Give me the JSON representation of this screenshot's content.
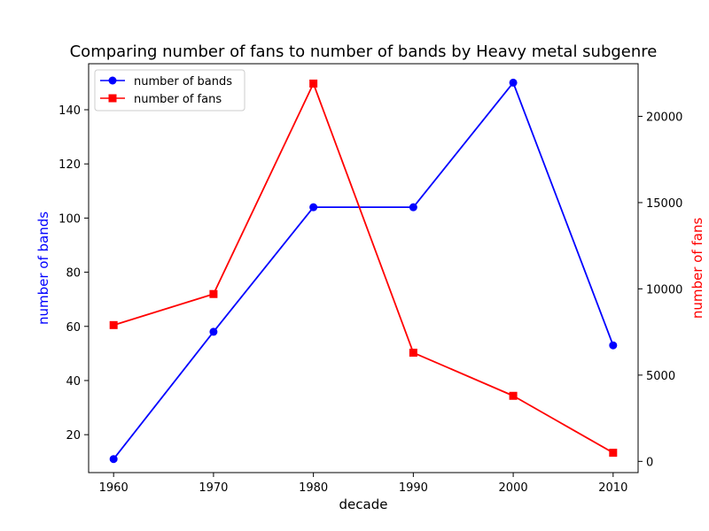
{
  "chart_data": {
    "type": "line",
    "title": "Comparing number of fans to number of bands by Heavy metal subgenre",
    "xlabel": "decade",
    "ylabel_left": "number of bands",
    "ylabel_right": "number of fans",
    "x": [
      1960,
      1970,
      1980,
      1990,
      2000,
      2010
    ],
    "x_ticks": [
      "1960",
      "1970",
      "1980",
      "1990",
      "2000",
      "2010"
    ],
    "y_left_ticks": [
      20,
      40,
      60,
      80,
      100,
      120,
      140
    ],
    "y_right_ticks": [
      0,
      5000,
      10000,
      15000,
      20000
    ],
    "y_left_range": [
      6,
      157
    ],
    "y_right_range": [
      -650,
      23050
    ],
    "legend_position": "upper-left",
    "grid": false,
    "series": [
      {
        "name": "number of bands",
        "axis": "left",
        "color": "#0000ff",
        "marker": "circle",
        "values": [
          11,
          58,
          104,
          104,
          150,
          53
        ]
      },
      {
        "name": "number of fans",
        "axis": "right",
        "color": "#ff0000",
        "marker": "square",
        "values": [
          7900,
          9700,
          21900,
          6300,
          3800,
          500
        ]
      }
    ]
  }
}
